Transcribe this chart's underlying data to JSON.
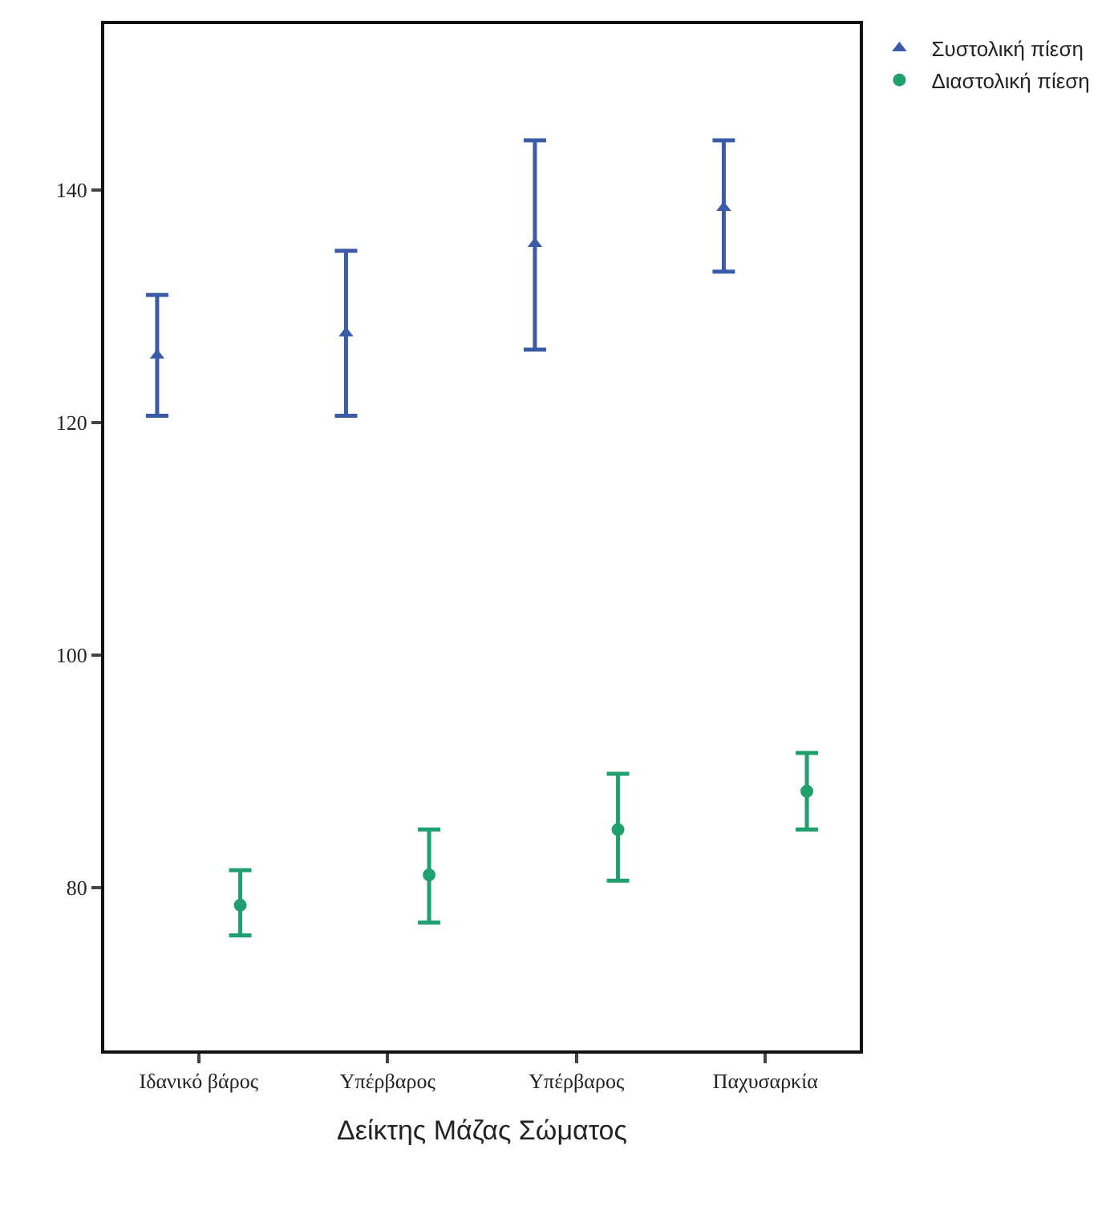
{
  "chart_data": {
    "type": "scatter",
    "xlabel": "Δείκτης Μάζας Σώματος",
    "categories": [
      "Ιδανικό βάρος",
      "Υπέρβαρος",
      "Υπέρβαρος",
      "Παχυσαρκία"
    ],
    "series": [
      {
        "name": "Συστολική πίεση",
        "color": "#3a5ba8",
        "marker": "triangle",
        "values": [
          125.8,
          127.7,
          135.4,
          138.5
        ],
        "errors": [
          [
            120.6,
            131.0
          ],
          [
            120.6,
            134.8
          ],
          [
            126.3,
            144.3
          ],
          [
            133.0,
            144.3
          ]
        ]
      },
      {
        "name": "Διαστολική πίεση",
        "color": "#1fa06e",
        "marker": "circle",
        "values": [
          78.5,
          81.1,
          85.0,
          88.3
        ],
        "errors": [
          [
            75.9,
            81.5
          ],
          [
            77.0,
            85.0
          ],
          [
            80.6,
            89.8
          ],
          [
            85.0,
            91.6
          ]
        ]
      }
    ],
    "ylim": [
      66,
      154.3
    ],
    "yticks": [
      80,
      100,
      120,
      140
    ],
    "grid": false,
    "legend": "top right"
  }
}
